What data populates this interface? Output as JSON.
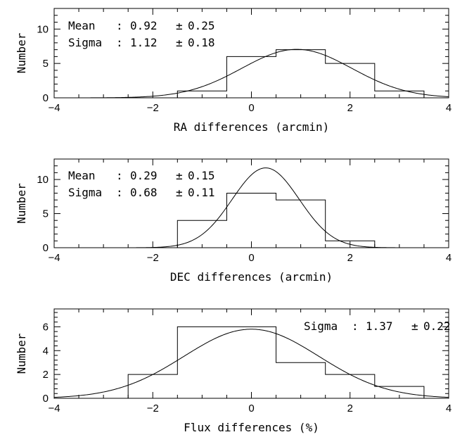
{
  "chart_data": [
    {
      "type": "histogram",
      "xlabel": "RA differences (arcmin)",
      "ylabel": "Number",
      "xlim": [
        -4,
        4
      ],
      "ylim": [
        0,
        13
      ],
      "xticks": [
        -4,
        -2,
        0,
        2,
        4
      ],
      "yticks": [
        0,
        5,
        10
      ],
      "bin_edges": [
        -1.5,
        -0.5,
        0.5,
        1.5,
        2.5,
        3.5
      ],
      "counts": [
        1,
        6,
        7,
        5,
        1
      ],
      "gaussian_fit": {
        "mean": 0.92,
        "sigma": 1.12,
        "peak": 7.05
      },
      "annotations": [
        {
          "name": "Mean",
          "sep": ":",
          "value": "0.92",
          "pm": "±",
          "error": "0.25"
        },
        {
          "name": "Sigma",
          "sep": ":",
          "value": "1.12",
          "pm": "±",
          "error": "0.18"
        }
      ]
    },
    {
      "type": "histogram",
      "xlabel": "DEC differences (arcmin)",
      "ylabel": "Number",
      "xlim": [
        -4,
        4
      ],
      "ylim": [
        0,
        13
      ],
      "xticks": [
        -4,
        -2,
        0,
        2,
        4
      ],
      "yticks": [
        0,
        5,
        10
      ],
      "bin_edges": [
        -1.5,
        -0.5,
        0.5,
        1.5,
        2.5
      ],
      "counts": [
        4,
        8,
        7,
        1
      ],
      "gaussian_fit": {
        "mean": 0.29,
        "sigma": 0.68,
        "peak": 11.7
      },
      "annotations": [
        {
          "name": "Mean",
          "sep": ":",
          "value": "0.29",
          "pm": "±",
          "error": "0.15"
        },
        {
          "name": "Sigma",
          "sep": ":",
          "value": "0.68",
          "pm": "±",
          "error": "0.11"
        }
      ]
    },
    {
      "type": "histogram",
      "xlabel": "Flux differences (%)",
      "ylabel": "Number",
      "xlim": [
        -4,
        4
      ],
      "ylim": [
        0,
        7.5
      ],
      "xticks": [
        -4,
        -2,
        0,
        2,
        4
      ],
      "yticks": [
        0,
        2,
        4,
        6
      ],
      "bin_edges": [
        -2.5,
        -1.5,
        0.5,
        1.5,
        2.5,
        3.5
      ],
      "counts": [
        2,
        6,
        3,
        2,
        1
      ],
      "gaussian_fit": {
        "mean": 0.0,
        "sigma": 1.37,
        "peak": 5.8
      },
      "annotations": [
        {
          "name": "Sigma",
          "sep": ":",
          "value": "1.37",
          "pm": "±",
          "error": "0.22"
        }
      ]
    }
  ]
}
